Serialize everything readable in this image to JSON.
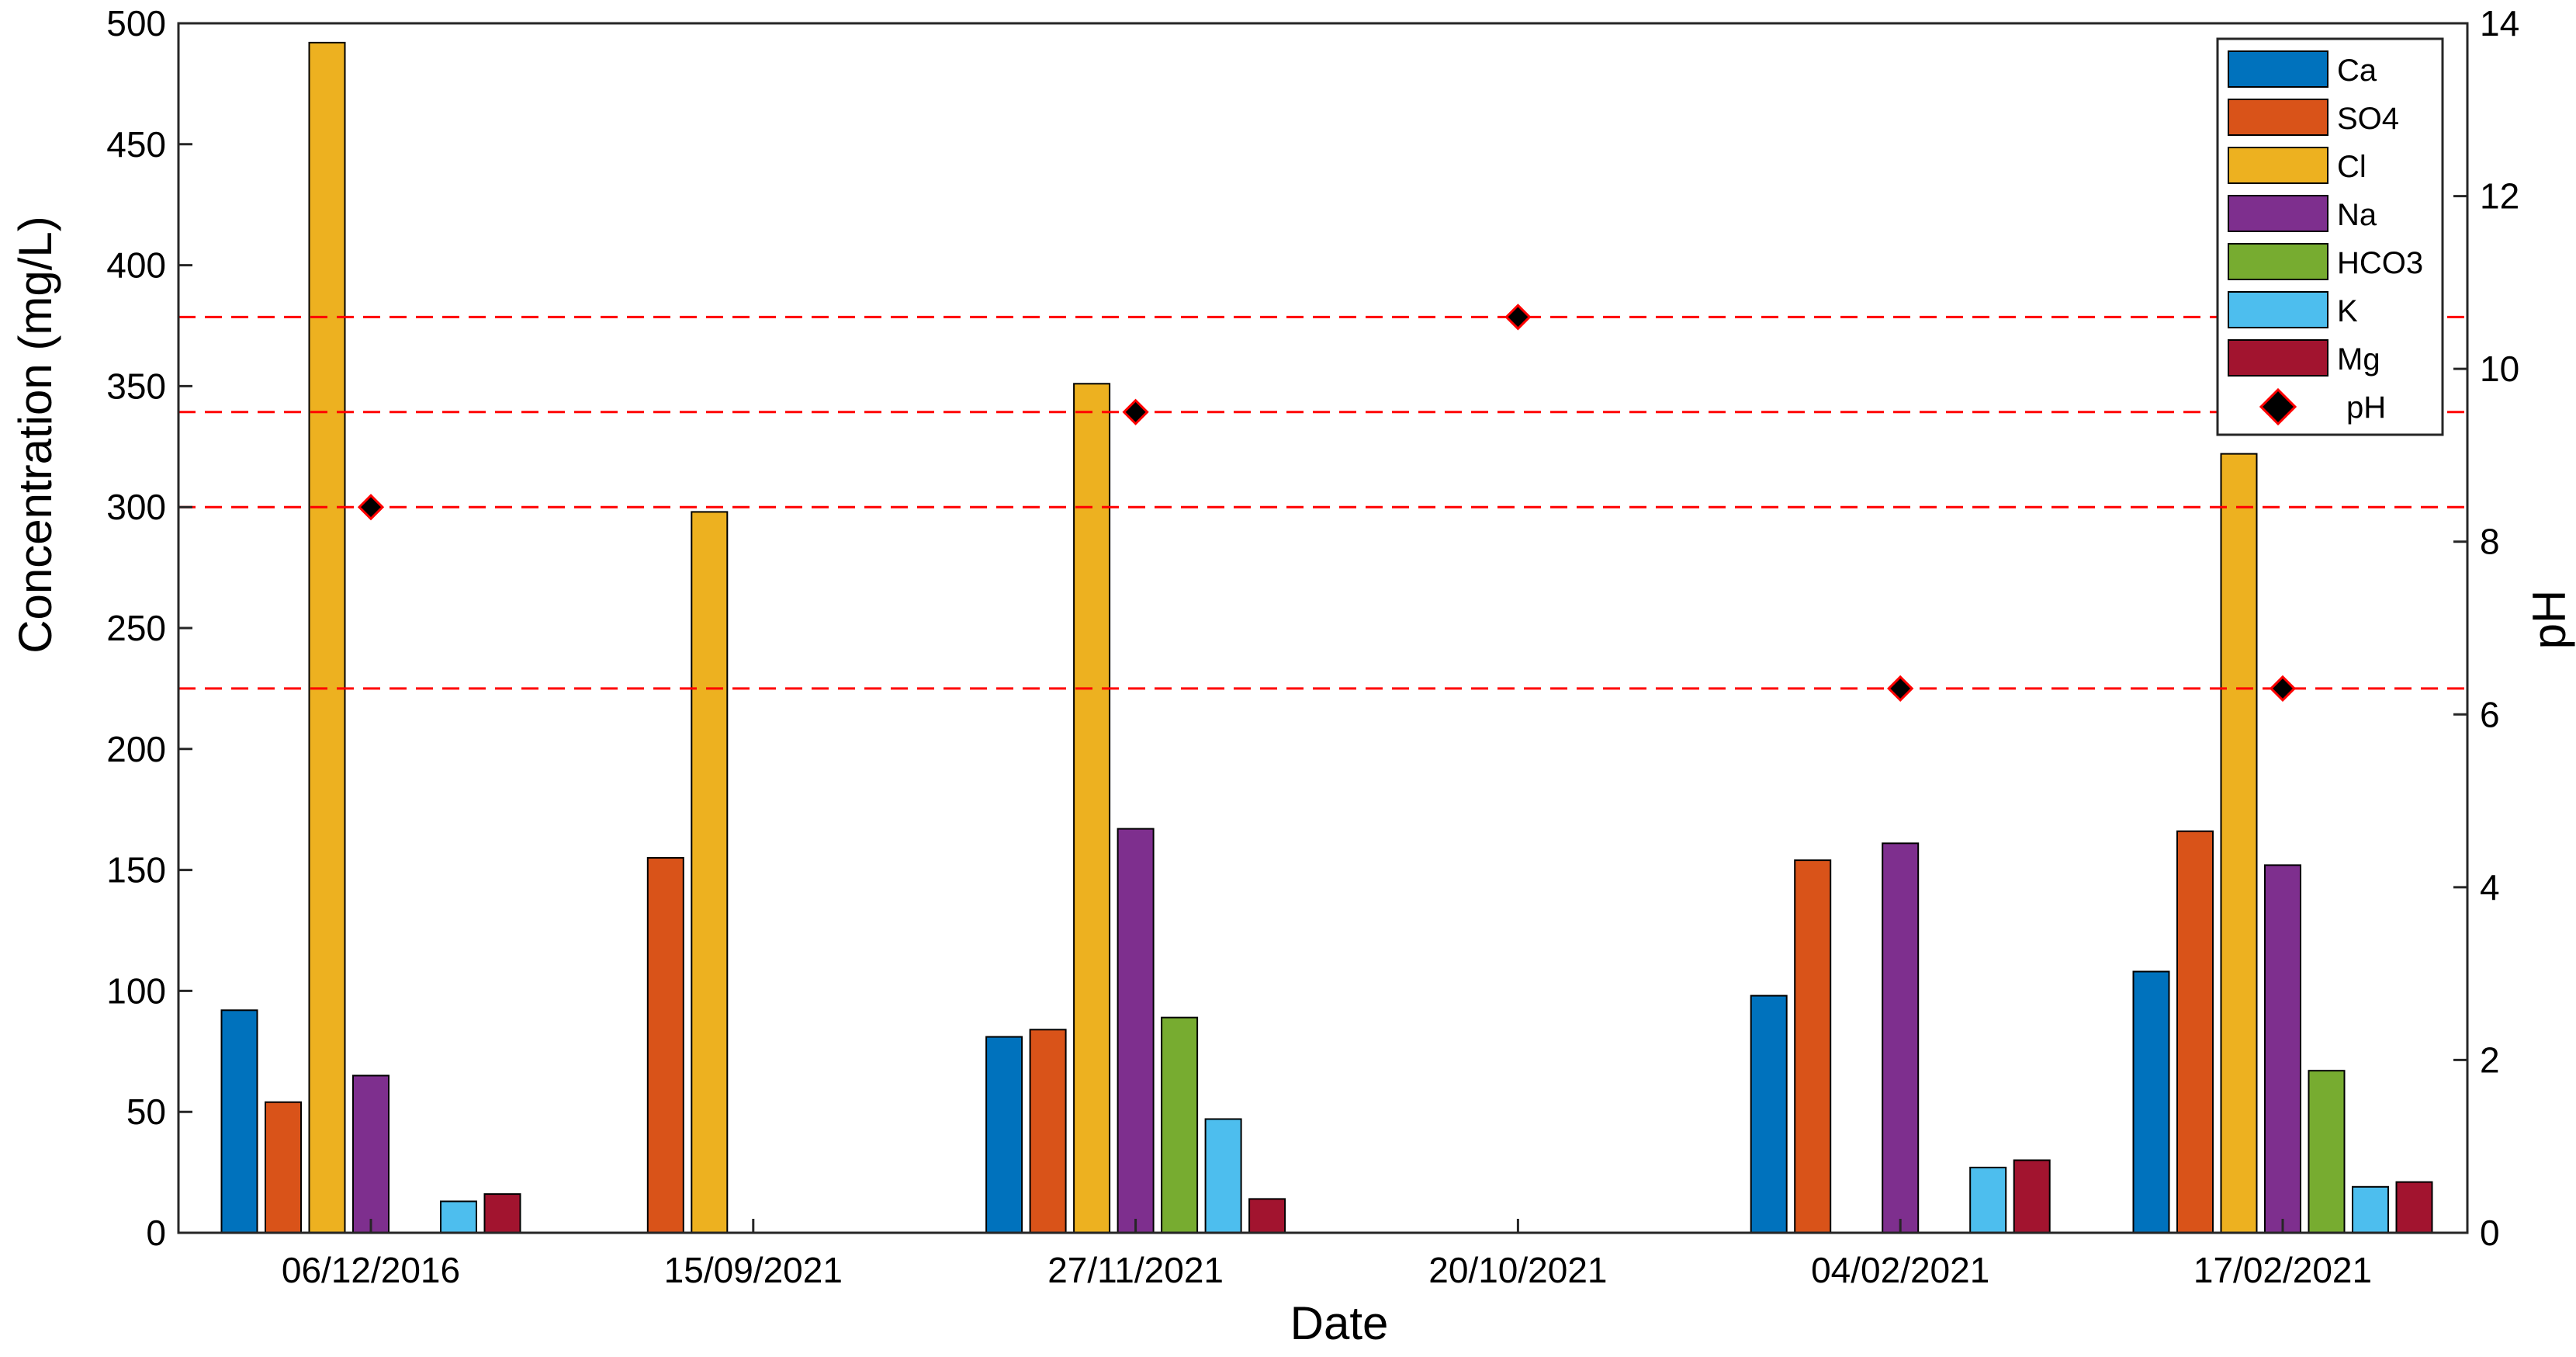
{
  "chart_data": {
    "type": "bar",
    "xlabel": "Date",
    "ylabel": "Concentration (mg/L)",
    "y2label": "pH",
    "ylim": [
      0,
      500
    ],
    "y2lim": [
      0,
      14
    ],
    "yticks": [
      0,
      50,
      100,
      150,
      200,
      250,
      300,
      350,
      400,
      450,
      500
    ],
    "y2ticks": [
      0,
      2,
      4,
      6,
      8,
      10,
      12,
      14
    ],
    "categories": [
      "06/12/2016",
      "15/09/2021",
      "27/11/2021",
      "20/10/2021",
      "04/02/2021",
      "17/02/2021"
    ],
    "series": [
      {
        "name": "Ca",
        "color": "#0072BD",
        "values": [
          92,
          0,
          81,
          0,
          98,
          108
        ]
      },
      {
        "name": "SO4",
        "color": "#D95319",
        "values": [
          54,
          155,
          84,
          0,
          154,
          166
        ]
      },
      {
        "name": "Cl",
        "color": "#EDB120",
        "values": [
          492,
          298,
          351,
          0,
          0,
          322
        ]
      },
      {
        "name": "Na",
        "color": "#7E2F8E",
        "values": [
          65,
          0,
          167,
          0,
          161,
          152
        ]
      },
      {
        "name": "HCO3",
        "color": "#77AC30",
        "values": [
          0,
          0,
          89,
          0,
          0,
          67
        ]
      },
      {
        "name": "K",
        "color": "#4DBEEE",
        "values": [
          13,
          0,
          47,
          0,
          27,
          19
        ]
      },
      {
        "name": "Mg",
        "color": "#A2142F",
        "values": [
          16,
          0,
          14,
          0,
          30,
          21
        ]
      }
    ],
    "ph": {
      "name": "pH",
      "marker": "diamond",
      "fill": "#000000",
      "edge": "#FF0000",
      "values": [
        8.4,
        null,
        9.5,
        10.6,
        6.3,
        6.3
      ]
    },
    "reference_lines_ph": [
      6.3,
      8.4,
      9.5,
      10.6
    ],
    "reference_line_color": "#FF0000",
    "legend_position": "top-right",
    "grid": false
  }
}
